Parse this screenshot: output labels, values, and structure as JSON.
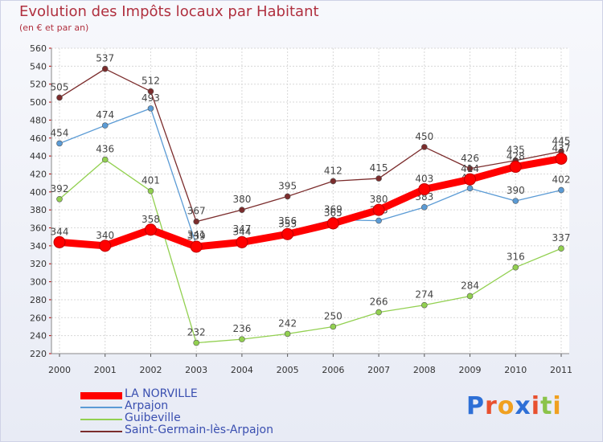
{
  "title": "Evolution des Impôts locaux par Habitant",
  "subtitle": "(en € et par an)",
  "logo_text": "Proxiti",
  "chart_data": {
    "type": "line",
    "x": [
      "2000",
      "2001",
      "2002",
      "2003",
      "2004",
      "2005",
      "2006",
      "2007",
      "2008",
      "2009",
      "2010",
      "2011"
    ],
    "ylim": [
      220,
      560
    ],
    "y_ticks": [
      220,
      240,
      260,
      280,
      300,
      320,
      340,
      360,
      380,
      400,
      420,
      440,
      460,
      480,
      500,
      520,
      540,
      560
    ],
    "grid": true,
    "legend_placement": "bottom-left",
    "series": [
      {
        "name": "LA NORVILLE",
        "color": "#ff0000",
        "values": [
          344,
          340,
          358,
          339,
          344,
          353,
          365,
          380,
          403,
          414,
          428,
          437
        ]
      },
      {
        "name": "Arpajon",
        "color": "#5b9bd5",
        "values": [
          454,
          474,
          493,
          341,
          347,
          356,
          369,
          368,
          383,
          404,
          390,
          402
        ]
      },
      {
        "name": "Guibeville",
        "color": "#92d050",
        "values": [
          392,
          436,
          401,
          232,
          236,
          242,
          250,
          266,
          274,
          284,
          316,
          337
        ]
      },
      {
        "name": "Saint-Germain-lès-Arpajon",
        "color": "#7b2c2c",
        "values": [
          505,
          537,
          512,
          367,
          380,
          395,
          412,
          415,
          450,
          426,
          435,
          445
        ]
      }
    ]
  }
}
